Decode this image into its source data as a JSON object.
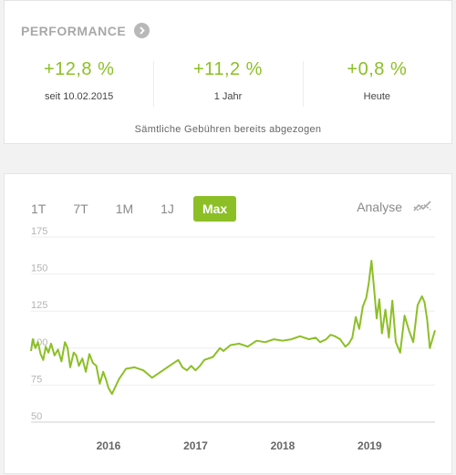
{
  "performance": {
    "title": "PERFORMANCE",
    "stats": [
      {
        "value": "+12,8 %",
        "label": "seit 10.02.2015"
      },
      {
        "value": "+11,2 %",
        "label": "1 Jahr"
      },
      {
        "value": "+0,8 %",
        "label": "Heute"
      }
    ],
    "note": "Sämtliche Gebühren bereits abgezogen"
  },
  "chart_controls": {
    "tabs": [
      "1T",
      "7T",
      "1M",
      "1J",
      "Max"
    ],
    "active_tab": "Max",
    "analyse_label": "Analyse",
    "analyse_icon": "trend-lines-icon"
  },
  "colors": {
    "accent": "#8cbf26",
    "muted": "#a8a8a8"
  },
  "chart_data": {
    "type": "line",
    "title": "",
    "xlabel": "",
    "ylabel": "",
    "ylim": [
      50,
      175
    ],
    "yticks": [
      175,
      150,
      125,
      100,
      75,
      50
    ],
    "xticks": [
      {
        "label": "2016",
        "year": 2016.0
      },
      {
        "label": "2017",
        "year": 2017.0
      },
      {
        "label": "2018",
        "year": 2018.0
      },
      {
        "label": "2019",
        "year": 2019.0
      }
    ],
    "xlim": [
      2015.11,
      2019.75
    ],
    "grid": "horizontal",
    "series": [
      {
        "x": [
          2015.11,
          2015.13,
          2015.16,
          2015.19,
          2015.22,
          2015.25,
          2015.28,
          2015.31,
          2015.34,
          2015.38,
          2015.42,
          2015.46,
          2015.5,
          2015.53,
          2015.56,
          2015.6,
          2015.63,
          2015.66,
          2015.7,
          2015.74,
          2015.78,
          2015.82,
          2015.86,
          2015.9,
          2015.94,
          2015.97,
          2016.0,
          2016.04,
          2016.08,
          2016.12,
          2016.2,
          2016.3,
          2016.4,
          2016.46,
          2016.5,
          2016.6,
          2016.7,
          2016.8,
          2016.85,
          2016.9,
          2016.95,
          2017.0,
          2017.05,
          2017.1,
          2017.2,
          2017.28,
          2017.32,
          2017.4,
          2017.5,
          2017.6,
          2017.7,
          2017.8,
          2017.9,
          2018.0,
          2018.1,
          2018.2,
          2018.3,
          2018.38,
          2018.43,
          2018.5,
          2018.55,
          2018.6,
          2018.66,
          2018.72,
          2018.76,
          2018.8,
          2018.84,
          2018.88,
          2018.92,
          2018.96,
          2018.99,
          2019.02,
          2019.05,
          2019.08,
          2019.11,
          2019.14,
          2019.18,
          2019.22,
          2019.26,
          2019.3,
          2019.35,
          2019.4,
          2019.45,
          2019.5,
          2019.55,
          2019.6,
          2019.63,
          2019.66,
          2019.69,
          2019.72,
          2019.75
        ],
        "y": [
          98,
          106,
          100,
          104,
          96,
          92,
          101,
          97,
          103,
          95,
          99,
          91,
          104,
          100,
          87,
          97,
          95,
          88,
          93,
          84,
          96,
          90,
          88,
          76,
          84,
          79,
          73,
          69,
          74,
          79,
          86,
          87,
          85,
          82,
          80,
          84,
          88,
          92,
          87,
          85,
          88,
          85,
          88,
          92,
          94,
          100,
          98,
          102,
          103,
          101,
          105,
          104,
          106,
          105,
          106,
          108,
          106,
          107,
          104,
          106,
          109,
          108,
          106,
          101,
          103,
          107,
          121,
          113,
          128,
          134,
          144,
          159,
          140,
          120,
          133,
          110,
          126,
          107,
          132,
          104,
          97,
          122,
          112,
          104,
          129,
          135,
          131,
          119,
          100,
          106,
          112
        ]
      }
    ]
  }
}
